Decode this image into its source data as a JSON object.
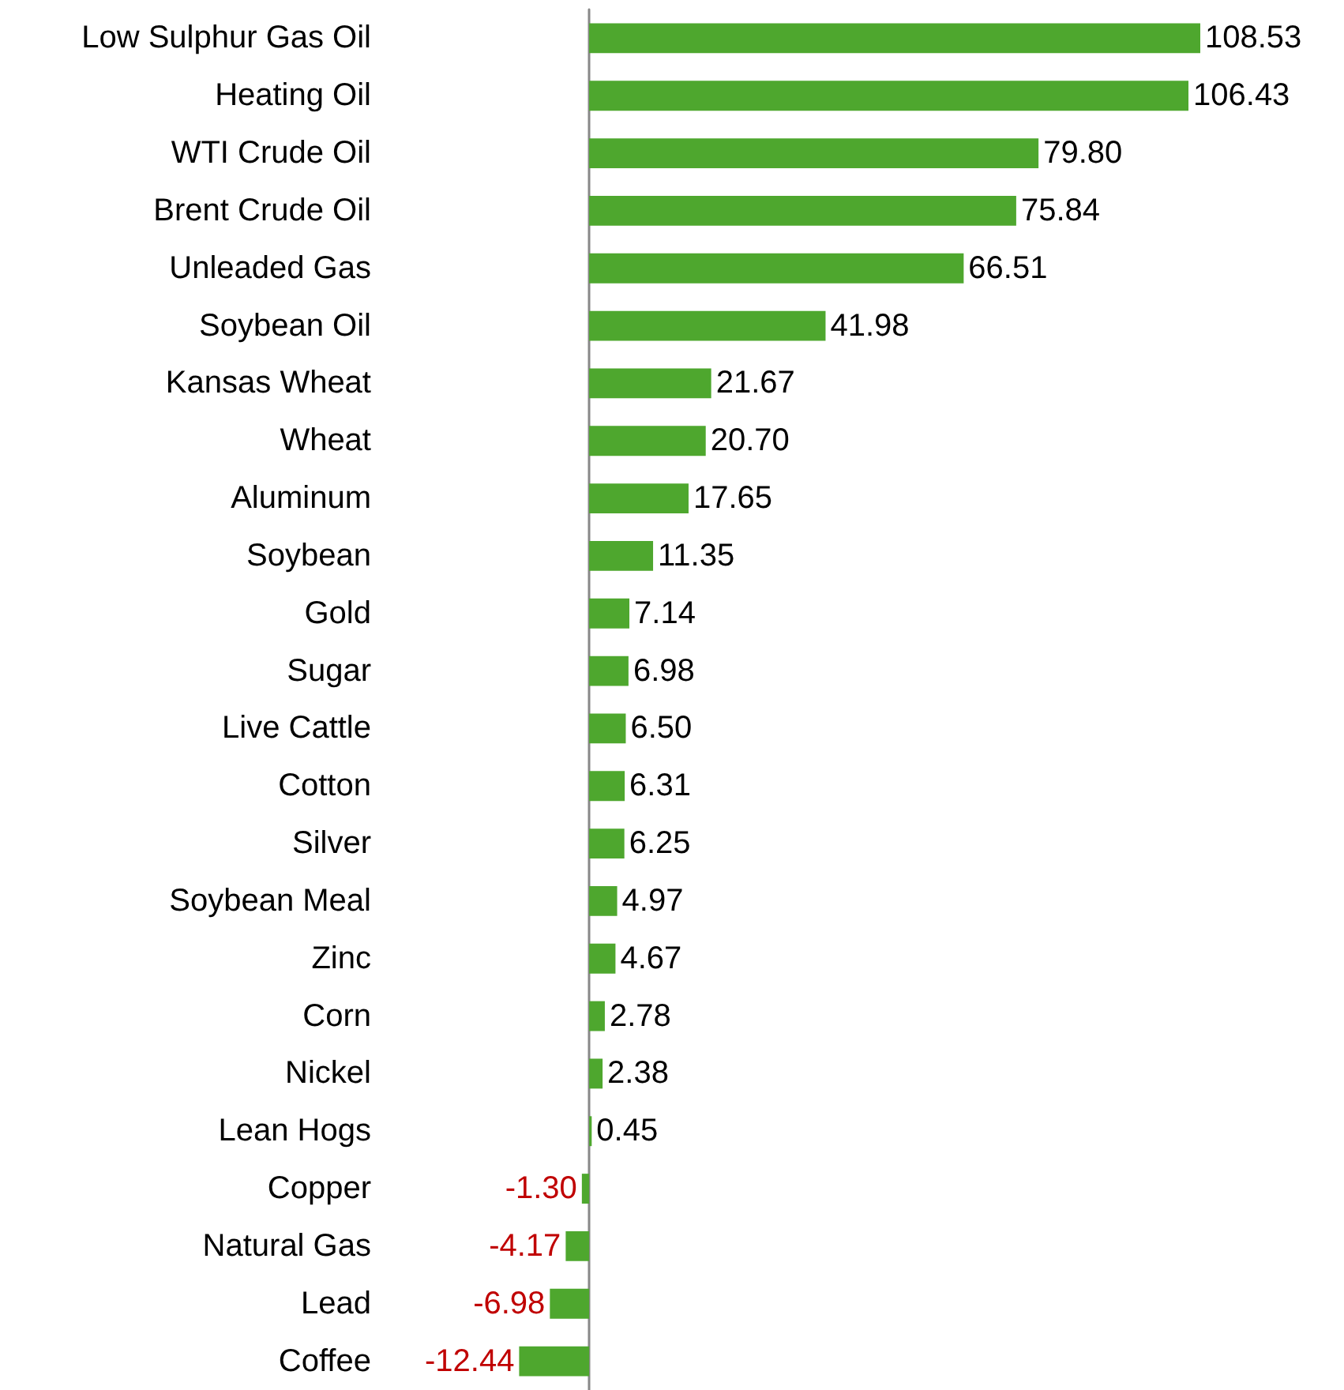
{
  "chart_data": {
    "type": "bar",
    "orientation": "horizontal",
    "color": "#4ea72e",
    "categories": [
      "Low Sulphur Gas Oil",
      "Heating Oil",
      "WTI Crude Oil",
      "Brent Crude Oil",
      "Unleaded Gas",
      "Soybean Oil",
      "Kansas Wheat",
      "Wheat",
      "Aluminum",
      "Soybean",
      "Gold",
      "Sugar",
      "Live Cattle",
      "Cotton",
      "Silver",
      "Soybean Meal",
      "Zinc",
      "Corn",
      "Nickel",
      "Lean Hogs",
      "Copper",
      "Natural Gas",
      "Lead",
      "Coffee"
    ],
    "values": [
      108.53,
      106.43,
      79.8,
      75.84,
      66.51,
      41.98,
      21.67,
      20.7,
      17.65,
      11.35,
      7.14,
      6.98,
      6.5,
      6.31,
      6.25,
      4.97,
      4.67,
      2.78,
      2.38,
      0.45,
      -1.3,
      -4.17,
      -6.98,
      -12.44
    ],
    "value_labels": [
      "108.53",
      "106.43",
      "79.80",
      "75.84",
      "66.51",
      "41.98",
      "21.67",
      "20.70",
      "17.65",
      "11.35",
      "7.14",
      "6.98",
      "6.50",
      "6.31",
      "6.25",
      "4.97",
      "4.67",
      "2.78",
      "2.38",
      "0.45",
      "-1.30",
      "-4.17",
      "-6.98",
      "-12.44"
    ]
  }
}
